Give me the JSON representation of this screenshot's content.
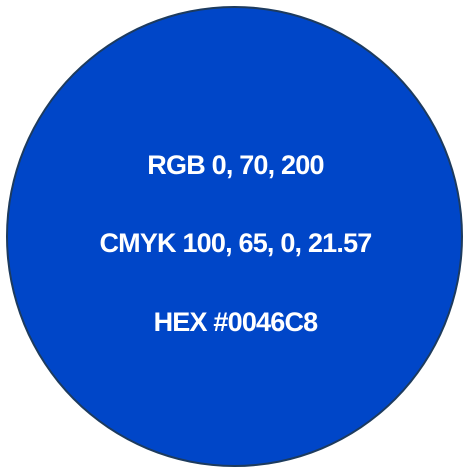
{
  "swatch": {
    "fill_color": "#0046C8",
    "border_color": "#1d3b5e"
  },
  "color_values": {
    "rgb": "RGB 0, 70, 200",
    "cmyk": "CMYK 100, 65, 0, 21.57",
    "hex": "HEX #0046C8"
  }
}
